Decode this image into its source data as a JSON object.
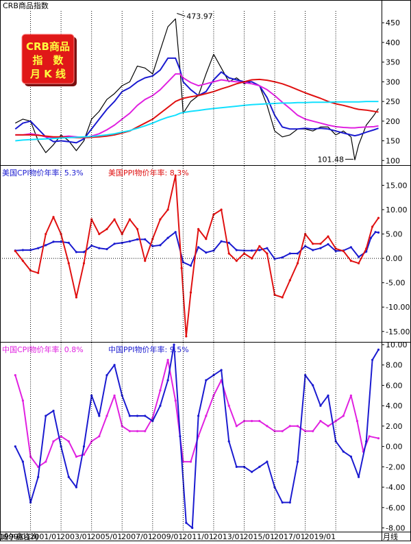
{
  "header": {
    "title": "CRB商品指数"
  },
  "badge": {
    "lines": [
      "CRB商品",
      "指　数",
      "月 K 线"
    ]
  },
  "footer": {
    "source": "威尔鑫咨询",
    "period_label": "月线"
  },
  "x_ticks": [
    "1999/01",
    "2001/01",
    "2003/01",
    "2005/01",
    "2007/01",
    "2009/01",
    "2011/01",
    "2013/01",
    "2015/01",
    "2017/01",
    "2019/01"
  ],
  "chart_data": [
    {
      "type": "line",
      "title": "CRB商品指数",
      "ylim": [
        90,
        480
      ],
      "yticks": [
        100,
        150,
        200,
        250,
        300,
        350,
        400,
        450
      ],
      "annotations": [
        {
          "text": "473.97",
          "x": 2008.5,
          "y": 473.97
        },
        {
          "text": "101.48",
          "x": 2020.25,
          "y": 101.48
        }
      ],
      "x": [
        1998.0,
        1998.5,
        1999.0,
        1999.5,
        2000.0,
        2000.5,
        2001.0,
        2001.5,
        2002.0,
        2002.5,
        2003.0,
        2003.5,
        2004.0,
        2004.5,
        2005.0,
        2005.5,
        2006.0,
        2006.5,
        2007.0,
        2007.5,
        2008.0,
        2008.5,
        2008.8,
        2009.0,
        2009.5,
        2010.0,
        2010.5,
        2011.0,
        2011.5,
        2012.0,
        2012.5,
        2013.0,
        2013.5,
        2014.0,
        2014.5,
        2015.0,
        2015.5,
        2016.0,
        2016.5,
        2017.0,
        2017.5,
        2018.0,
        2018.5,
        2019.0,
        2019.5,
        2020.0,
        2020.25,
        2020.5,
        2021.0,
        2021.5,
        2021.8
      ],
      "series": [
        {
          "key": "price",
          "color": "#000000",
          "values": [
            195,
            205,
            200,
            150,
            120,
            140,
            165,
            150,
            125,
            150,
            205,
            225,
            255,
            270,
            290,
            300,
            340,
            335,
            320,
            380,
            440,
            460,
            330,
            220,
            250,
            265,
            320,
            370,
            335,
            300,
            310,
            295,
            300,
            290,
            240,
            175,
            160,
            165,
            180,
            180,
            175,
            185,
            185,
            165,
            175,
            160,
            101.48,
            140,
            190,
            215,
            232
          ]
        },
        {
          "key": "ma-blue",
          "color": "#1a1ad0",
          "values": [
            180,
            195,
            200,
            180,
            160,
            148,
            150,
            148,
            145,
            155,
            180,
            205,
            230,
            250,
            275,
            285,
            300,
            310,
            315,
            330,
            360,
            360,
            330,
            300,
            280,
            265,
            275,
            305,
            325,
            310,
            305,
            300,
            300,
            290,
            260,
            215,
            185,
            180,
            180,
            182,
            180,
            182,
            180,
            175,
            170,
            165,
            163,
            165,
            172,
            178,
            182
          ]
        },
        {
          "key": "ma-magenta",
          "color": "#e020e0",
          "values": [
            165,
            165,
            168,
            165,
            160,
            158,
            160,
            162,
            160,
            158,
            162,
            168,
            178,
            190,
            205,
            220,
            240,
            255,
            265,
            280,
            300,
            320,
            320,
            310,
            298,
            290,
            295,
            300,
            305,
            302,
            300,
            298,
            295,
            290,
            280,
            265,
            248,
            232,
            215,
            205,
            200,
            195,
            190,
            186,
            184,
            183,
            183,
            184,
            185,
            186,
            188
          ]
        },
        {
          "key": "ma-red",
          "color": "#e01010",
          "values": [
            165,
            165,
            165,
            164,
            162,
            160,
            160,
            159,
            158,
            158,
            159,
            160,
            162,
            165,
            170,
            175,
            185,
            195,
            205,
            220,
            235,
            250,
            255,
            258,
            262,
            265,
            270,
            275,
            282,
            288,
            295,
            300,
            305,
            306,
            304,
            300,
            295,
            288,
            280,
            272,
            265,
            258,
            250,
            244,
            240,
            235,
            232,
            230,
            228,
            225,
            223
          ]
        },
        {
          "key": "ma-cyan",
          "color": "#10e0ff",
          "values": [
            150,
            152,
            153,
            154,
            155,
            156,
            157,
            158,
            159,
            160,
            161,
            163,
            165,
            168,
            172,
            176,
            182,
            188,
            195,
            203,
            210,
            215,
            220,
            222,
            225,
            227,
            230,
            232,
            234,
            236,
            238,
            240,
            242,
            243,
            244,
            245,
            246,
            246,
            247,
            247,
            248,
            248,
            248,
            249,
            249,
            249,
            249,
            249,
            250,
            250,
            250
          ]
        }
      ]
    },
    {
      "type": "line",
      "ylim": [
        -17,
        19
      ],
      "yticks": [
        -15,
        -10,
        -5,
        0,
        5,
        10,
        15
      ],
      "zero_line": true,
      "series": [
        {
          "key": "us-cpi",
          "name": "美国CPI物价年率",
          "latest": "5.3%",
          "color": "#1a1ad0",
          "x": [
            1998.0,
            1998.5,
            1999.0,
            1999.5,
            2000.0,
            2000.5,
            2001.0,
            2001.5,
            2002.0,
            2002.5,
            2003.0,
            2003.5,
            2004.0,
            2004.5,
            2005.0,
            2005.5,
            2006.0,
            2006.5,
            2007.0,
            2007.5,
            2008.0,
            2008.5,
            2009.0,
            2009.5,
            2010.0,
            2010.5,
            2011.0,
            2011.5,
            2012.0,
            2012.5,
            2013.0,
            2013.5,
            2014.0,
            2014.5,
            2015.0,
            2015.5,
            2016.0,
            2016.5,
            2017.0,
            2017.5,
            2018.0,
            2018.5,
            2019.0,
            2019.5,
            2020.0,
            2020.5,
            2021.0,
            2021.3,
            2021.6,
            2021.8
          ],
          "values": [
            1.6,
            1.7,
            1.7,
            2.1,
            2.7,
            3.4,
            3.4,
            3.2,
            1.3,
            1.3,
            2.6,
            2.1,
            1.9,
            3.0,
            3.2,
            3.5,
            3.9,
            3.9,
            2.5,
            2.7,
            4.2,
            5.4,
            -0.8,
            -1.5,
            2.3,
            1.2,
            1.6,
            3.5,
            3.2,
            1.7,
            1.6,
            1.6,
            1.7,
            2.1,
            -0.1,
            0.2,
            1.0,
            1.0,
            2.5,
            1.7,
            2.1,
            2.9,
            1.5,
            1.6,
            2.3,
            0.3,
            1.4,
            4.2,
            5.4,
            5.3
          ]
        },
        {
          "key": "us-ppi",
          "name": "美国PPI物价年率",
          "latest": "8.3%",
          "color": "#e01010",
          "x": [
            1998.0,
            1998.5,
            1999.0,
            1999.5,
            2000.0,
            2000.5,
            2001.0,
            2001.5,
            2002.0,
            2002.5,
            2003.0,
            2003.5,
            2004.0,
            2004.5,
            2005.0,
            2005.5,
            2006.0,
            2006.5,
            2007.0,
            2007.5,
            2008.0,
            2008.5,
            2008.9,
            2009.2,
            2009.5,
            2010.0,
            2010.5,
            2011.0,
            2011.5,
            2012.0,
            2012.5,
            2013.0,
            2013.5,
            2014.0,
            2014.5,
            2015.0,
            2015.5,
            2016.0,
            2016.5,
            2017.0,
            2017.5,
            2018.0,
            2018.5,
            2019.0,
            2019.5,
            2020.0,
            2020.5,
            2021.0,
            2021.4,
            2021.8
          ],
          "values": [
            1.5,
            -0.5,
            -2.5,
            -3.0,
            5.0,
            8.5,
            5.0,
            -1.0,
            -8.0,
            -1.0,
            8.0,
            5.0,
            6.0,
            8.0,
            5.0,
            8.0,
            6.0,
            -0.5,
            4.0,
            8.0,
            10.0,
            17.0,
            -2.0,
            -16.0,
            -7.0,
            6.0,
            4.0,
            9.0,
            10.0,
            1.0,
            -0.5,
            1.0,
            0.0,
            2.5,
            1.0,
            -7.5,
            -8.0,
            -4.5,
            -1.0,
            5.0,
            3.0,
            3.0,
            4.5,
            2.0,
            1.5,
            -0.5,
            -1.0,
            2.0,
            6.5,
            8.3
          ]
        }
      ]
    },
    {
      "type": "line",
      "ylim": [
        -8.3,
        10.2
      ],
      "yticks": [
        -8,
        -6,
        -4,
        -2,
        0,
        2,
        4,
        6,
        8,
        10
      ],
      "series": [
        {
          "key": "cn-cpi",
          "name": "中国CPI物价年率",
          "latest": "0.8%",
          "color": "#e020e0",
          "x": [
            1998.0,
            1998.5,
            1999.0,
            1999.5,
            2000.0,
            2000.5,
            2001.0,
            2001.5,
            2002.0,
            2002.5,
            2003.0,
            2003.5,
            2004.0,
            2004.5,
            2005.0,
            2005.5,
            2006.0,
            2006.5,
            2007.0,
            2007.5,
            2008.0,
            2008.5,
            2009.0,
            2009.5,
            2010.0,
            2010.5,
            2011.0,
            2011.5,
            2012.0,
            2012.5,
            2013.0,
            2013.5,
            2014.0,
            2014.5,
            2015.0,
            2015.5,
            2016.0,
            2016.5,
            2017.0,
            2017.5,
            2018.0,
            2018.5,
            2019.0,
            2019.5,
            2020.0,
            2020.4,
            2020.8,
            2021.2,
            2021.8
          ],
          "values": [
            7.0,
            4.5,
            -1.0,
            -2.0,
            -1.5,
            0.5,
            1.0,
            0.5,
            -1.0,
            -0.8,
            0.5,
            1.0,
            3.0,
            5.0,
            2.0,
            1.5,
            1.5,
            1.5,
            2.8,
            5.5,
            8.5,
            4.5,
            -1.5,
            -1.5,
            1.0,
            3.0,
            5.0,
            6.5,
            4.0,
            2.0,
            2.5,
            2.5,
            2.5,
            2.0,
            1.5,
            1.5,
            2.0,
            2.0,
            1.5,
            1.5,
            2.5,
            2.0,
            2.5,
            3.0,
            5.0,
            2.5,
            -0.5,
            1.0,
            0.8
          ]
        },
        {
          "key": "cn-ppi",
          "name": "中国PPI物价年率",
          "latest": "9.5%",
          "color": "#1a1ad0",
          "x": [
            1998.0,
            1998.5,
            1999.0,
            1999.5,
            2000.0,
            2000.5,
            2001.0,
            2001.5,
            2002.0,
            2002.5,
            2003.0,
            2003.5,
            2004.0,
            2004.5,
            2005.0,
            2005.5,
            2006.0,
            2006.5,
            2007.0,
            2007.5,
            2008.0,
            2008.4,
            2008.8,
            2009.2,
            2009.6,
            2010.0,
            2010.5,
            2011.0,
            2011.5,
            2012.0,
            2012.5,
            2013.0,
            2013.5,
            2014.0,
            2014.5,
            2015.0,
            2015.5,
            2016.0,
            2016.5,
            2017.0,
            2017.5,
            2018.0,
            2018.5,
            2019.0,
            2019.5,
            2020.0,
            2020.5,
            2021.0,
            2021.4,
            2021.8
          ],
          "values": [
            0.0,
            -1.5,
            -5.5,
            -3.0,
            3.0,
            3.5,
            0.0,
            -3.0,
            -4.0,
            0.0,
            5.0,
            3.0,
            7.0,
            8.0,
            5.0,
            3.0,
            3.0,
            3.0,
            2.5,
            4.0,
            6.5,
            10.0,
            1.0,
            -7.5,
            -8.0,
            3.0,
            6.5,
            7.0,
            7.5,
            0.5,
            -2.0,
            -2.0,
            -2.5,
            -2.0,
            -1.5,
            -4.0,
            -5.5,
            -5.5,
            -1.5,
            7.0,
            6.0,
            4.0,
            5.0,
            0.5,
            -0.5,
            -1.0,
            -3.0,
            0.5,
            8.5,
            9.5
          ]
        }
      ]
    }
  ]
}
